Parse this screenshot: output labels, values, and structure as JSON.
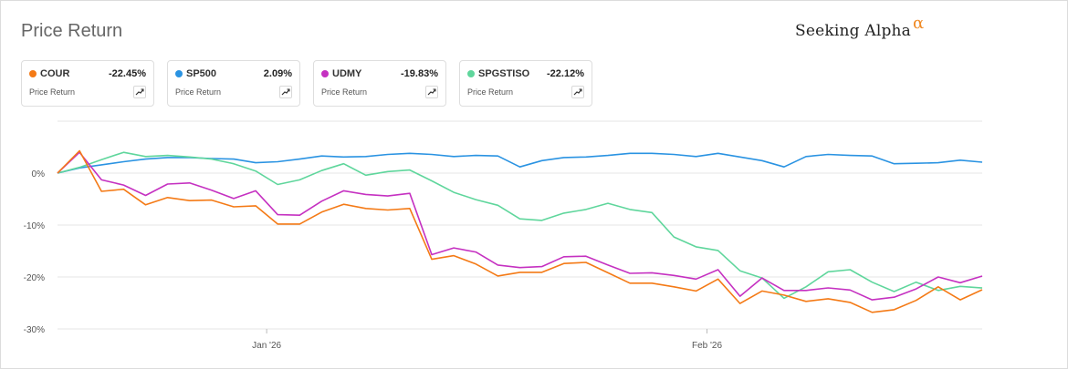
{
  "header": {
    "title": "Price Return",
    "brand": "Seeking Alpha",
    "brand_symbol": "α"
  },
  "legend": [
    {
      "ticker": "COUR",
      "value": "-22.45%",
      "sub": "Price Return",
      "color": "#f47a16",
      "icon": "trend-icon"
    },
    {
      "ticker": "SP500",
      "value": "2.09%",
      "sub": "Price Return",
      "color": "#2a93e2",
      "icon": "trend-icon"
    },
    {
      "ticker": "UDMY",
      "value": "-19.83%",
      "sub": "Price Return",
      "color": "#c531c1",
      "icon": "trend-icon"
    },
    {
      "ticker": "SPGSTISO",
      "value": "-22.12%",
      "sub": "Price Return",
      "color": "#5fd69c",
      "icon": "trend-icon"
    }
  ],
  "chart_data": {
    "type": "line",
    "title": "Price Return",
    "ylim": [
      -30,
      10
    ],
    "yticks": [
      0,
      -10,
      -20,
      -30
    ],
    "ytick_labels": [
      "0%",
      "-10%",
      "-20%",
      "-30%"
    ],
    "xlim": [
      0,
      42
    ],
    "xticks": [
      {
        "x": 9.5,
        "label": "Jan '26"
      },
      {
        "x": 29.5,
        "label": "Feb '26"
      }
    ],
    "legend_position": "top",
    "x": [
      0,
      1,
      2,
      3,
      4,
      5,
      6,
      7,
      8,
      9,
      10,
      11,
      12,
      13,
      14,
      15,
      16,
      17,
      18,
      19,
      20,
      21,
      22,
      23,
      24,
      25,
      26,
      27,
      28,
      29,
      30,
      31,
      32,
      33,
      34,
      35,
      36,
      37,
      38,
      39,
      40,
      41,
      42
    ],
    "series": [
      {
        "name": "SP500",
        "color": "#2a93e2",
        "values": [
          0,
          1.0,
          1.6,
          2.2,
          2.7,
          3.0,
          3.0,
          2.8,
          2.7,
          2.0,
          2.2,
          2.7,
          3.3,
          3.1,
          3.2,
          3.6,
          3.8,
          3.6,
          3.2,
          3.4,
          3.3,
          1.2,
          2.4,
          3.0,
          3.1,
          3.4,
          3.8,
          3.8,
          3.6,
          3.2,
          3.8,
          3.1,
          2.4,
          1.2,
          3.2,
          3.6,
          3.4,
          3.3,
          1.8,
          1.9,
          2.0,
          2.5,
          2.1
        ]
      },
      {
        "name": "SPGSTISO",
        "color": "#5fd69c",
        "values": [
          0,
          1.1,
          2.6,
          4.0,
          3.2,
          3.4,
          3.1,
          2.7,
          1.8,
          0.4,
          -2.2,
          -1.3,
          0.5,
          1.8,
          -0.4,
          0.3,
          0.6,
          -1.5,
          -3.7,
          -5.1,
          -6.2,
          -8.8,
          -9.1,
          -7.7,
          -7.0,
          -5.8,
          -7.0,
          -7.6,
          -12.3,
          -14.2,
          -14.9,
          -18.8,
          -20.2,
          -24.1,
          -21.9,
          -19.0,
          -18.6,
          -21.0,
          -22.8,
          -21.0,
          -22.6,
          -21.8,
          -22.12
        ]
      },
      {
        "name": "UDMY",
        "color": "#c531c1",
        "values": [
          0,
          4.0,
          -1.3,
          -2.3,
          -4.3,
          -2.1,
          -1.9,
          -3.3,
          -4.9,
          -3.4,
          -8.0,
          -8.1,
          -5.4,
          -3.4,
          -4.1,
          -4.4,
          -3.9,
          -15.7,
          -14.4,
          -15.2,
          -17.7,
          -18.2,
          -18.0,
          -16.1,
          -16.0,
          -17.7,
          -19.3,
          -19.2,
          -19.7,
          -20.4,
          -18.6,
          -23.7,
          -20.2,
          -22.6,
          -22.6,
          -22.1,
          -22.5,
          -24.4,
          -23.9,
          -22.3,
          -20.0,
          -21.1,
          -19.83
        ]
      },
      {
        "name": "COUR",
        "color": "#f47a16",
        "values": [
          0,
          4.3,
          -3.5,
          -3.1,
          -6.1,
          -4.7,
          -5.3,
          -5.2,
          -6.5,
          -6.3,
          -9.8,
          -9.8,
          -7.5,
          -6.0,
          -6.8,
          -7.1,
          -6.8,
          -16.6,
          -15.9,
          -17.5,
          -19.8,
          -19.1,
          -19.1,
          -17.4,
          -17.2,
          -19.2,
          -21.2,
          -21.2,
          -21.9,
          -22.7,
          -20.4,
          -25.1,
          -22.7,
          -23.5,
          -24.7,
          -24.2,
          -24.9,
          -26.8,
          -26.3,
          -24.5,
          -21.9,
          -24.4,
          -22.45
        ]
      }
    ]
  }
}
